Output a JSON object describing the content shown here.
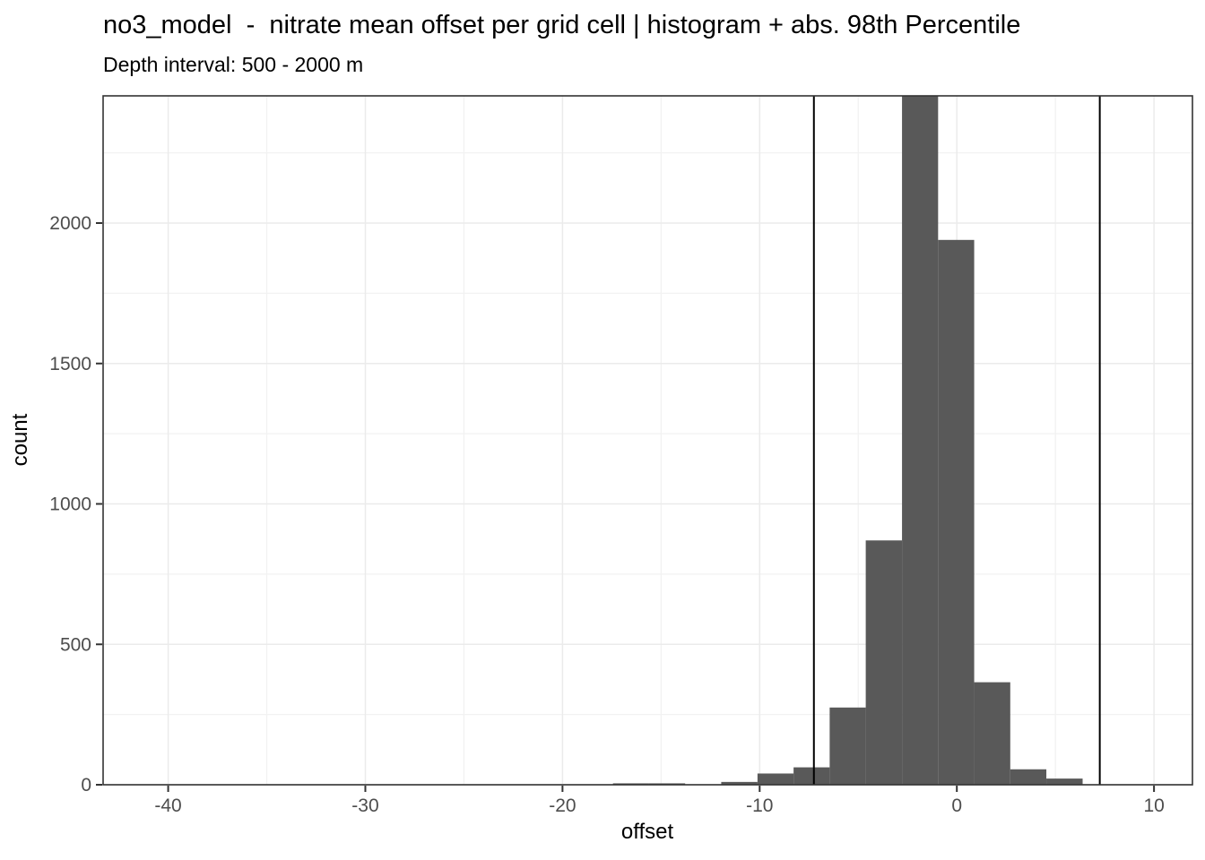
{
  "window": {
    "kind": "static-plot-figure"
  },
  "chart_data": {
    "type": "histogram",
    "title": "no3_model  -  nitrate mean offset per grid cell | histogram + abs. 98th Percentile",
    "subtitle": "Depth interval: 500 - 2000 m",
    "xlabel": "offset",
    "ylabel": "count",
    "x_domain": [
      -43.3,
      11.95
    ],
    "y_domain": [
      0,
      2453
    ],
    "x_ticks": [
      -40,
      -30,
      -20,
      -10,
      0,
      10
    ],
    "y_ticks": [
      0,
      500,
      1000,
      1500,
      2000
    ],
    "x_minor_ticks": [
      -35,
      -25,
      -15,
      -5,
      5
    ],
    "y_minor_ticks": [
      250,
      750,
      1250,
      1750,
      2250
    ],
    "grid": "major+minor",
    "legend_position": "none",
    "bin_width": 1.83,
    "bins": [
      {
        "x0": -17.44,
        "x1": -15.61,
        "count": 5
      },
      {
        "x0": -15.61,
        "x1": -13.78,
        "count": 5
      },
      {
        "x0": -13.78,
        "x1": -11.95,
        "count": 1
      },
      {
        "x0": -11.95,
        "x1": -10.11,
        "count": 10
      },
      {
        "x0": -10.11,
        "x1": -8.28,
        "count": 40
      },
      {
        "x0": -8.28,
        "x1": -6.45,
        "count": 62
      },
      {
        "x0": -6.45,
        "x1": -4.62,
        "count": 275
      },
      {
        "x0": -4.62,
        "x1": -2.78,
        "count": 870
      },
      {
        "x0": -2.78,
        "x1": -0.95,
        "count": 2453,
        "clipped": true
      },
      {
        "x0": -0.95,
        "x1": 0.88,
        "count": 1940
      },
      {
        "x0": 0.88,
        "x1": 2.71,
        "count": 365
      },
      {
        "x0": 2.71,
        "x1": 4.54,
        "count": 55
      },
      {
        "x0": 4.54,
        "x1": 6.38,
        "count": 22
      }
    ],
    "percentile_lines": [
      -7.25,
      7.25
    ],
    "notes": "tallest bar is clipped at the top edge of the panel; two vertical black lines mark the +/- abs. 98th percentile of offset",
    "colors": {
      "bar_fill": "#595959",
      "grid_major": "#ebebeb",
      "grid_minor": "#f2f2f2",
      "panel_border": "#333333",
      "tick_mark": "#333333",
      "tick_label": "#4d4d4d",
      "vline": "#000000",
      "text": "#000000",
      "background": "#ffffff"
    }
  }
}
